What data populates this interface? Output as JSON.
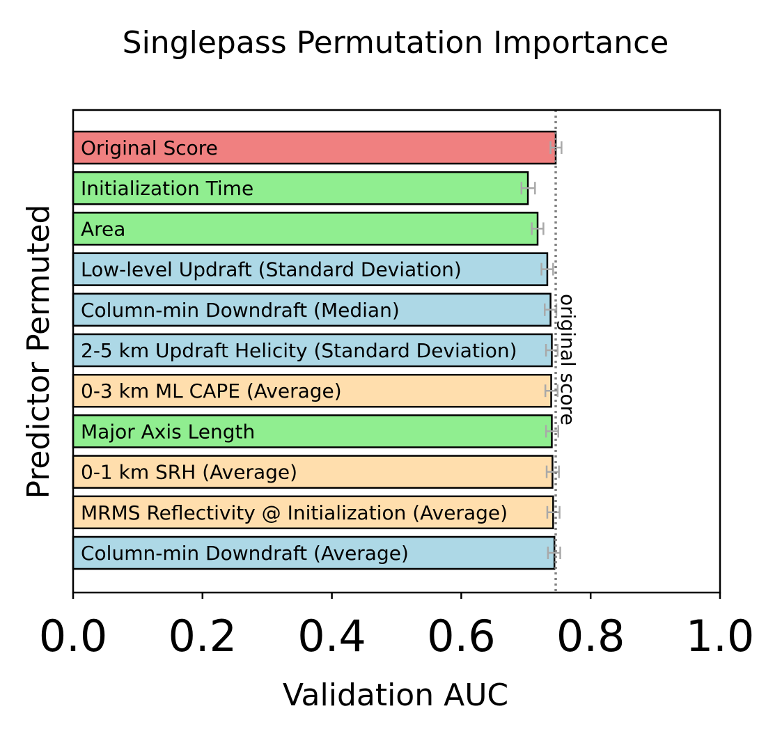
{
  "chart_data": {
    "type": "bar",
    "orientation": "horizontal",
    "title": "Singlepass Permutation Importance",
    "xlabel": "Validation AUC",
    "ylabel": "Predictor Permuted",
    "xlim": [
      0.0,
      1.0
    ],
    "xticks": [
      "0.0",
      "0.2",
      "0.4",
      "0.6",
      "0.8",
      "1.0"
    ],
    "grid": false,
    "reference_line": {
      "value": 0.746,
      "label": "original score",
      "style": "dotted",
      "color": "#808080"
    },
    "colors": {
      "original": "#f08080",
      "storm": "#90ee90",
      "kinematic": "#add8e6",
      "environment": "#ffdead",
      "error_bar": "#a9a9a9",
      "edge": "#000000"
    },
    "bars": [
      {
        "label": "Original Score",
        "value": 0.746,
        "err_low": 0.738,
        "err_high": 0.755,
        "color_key": "original"
      },
      {
        "label": "Initialization Time",
        "value": 0.703,
        "err_low": 0.693,
        "err_high": 0.714,
        "color_key": "storm"
      },
      {
        "label": "Area",
        "value": 0.718,
        "err_low": 0.709,
        "err_high": 0.727,
        "color_key": "storm"
      },
      {
        "label": "Low-level Updraft (Standard Deviation)",
        "value": 0.733,
        "err_low": 0.724,
        "err_high": 0.742,
        "color_key": "kinematic"
      },
      {
        "label": "Column-min Downdraft (Median)",
        "value": 0.738,
        "err_low": 0.729,
        "err_high": 0.747,
        "color_key": "kinematic"
      },
      {
        "label": "2-5 km Updraft Helicity (Standard Deviation)",
        "value": 0.74,
        "err_low": 0.731,
        "err_high": 0.749,
        "color_key": "kinematic"
      },
      {
        "label": "0-3 km ML CAPE (Average)",
        "value": 0.739,
        "err_low": 0.73,
        "err_high": 0.749,
        "color_key": "environment"
      },
      {
        "label": "Major Axis Length",
        "value": 0.74,
        "err_low": 0.731,
        "err_high": 0.75,
        "color_key": "storm"
      },
      {
        "label": "0-1 km SRH (Average)",
        "value": 0.741,
        "err_low": 0.732,
        "err_high": 0.751,
        "color_key": "environment"
      },
      {
        "label": "MRMS Reflectivity @ Initialization (Average)",
        "value": 0.742,
        "err_low": 0.733,
        "err_high": 0.752,
        "color_key": "environment"
      },
      {
        "label": "Column-min Downdraft (Average)",
        "value": 0.744,
        "err_low": 0.734,
        "err_high": 0.753,
        "color_key": "kinematic"
      }
    ]
  }
}
